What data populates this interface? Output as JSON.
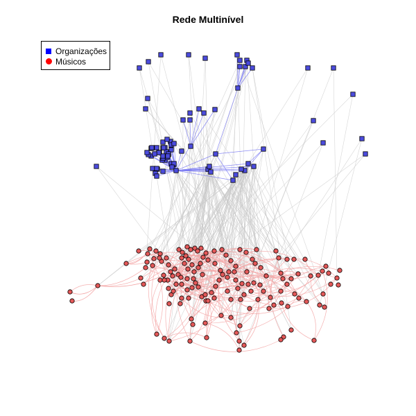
{
  "title": "Rede Multinível",
  "legend": [
    {
      "label": "Organizações",
      "color": "#0000ff",
      "shape": "square"
    },
    {
      "label": "Músicos",
      "color": "#ff0000",
      "shape": "circle"
    }
  ],
  "colors": {
    "organization_fill": "#4b4bdd",
    "musician_fill": "#e35858",
    "org_org_edge": "#6f6ff2",
    "cross_edge": "#c8c8c8",
    "musician_edge": "#f3a2a2"
  }
}
